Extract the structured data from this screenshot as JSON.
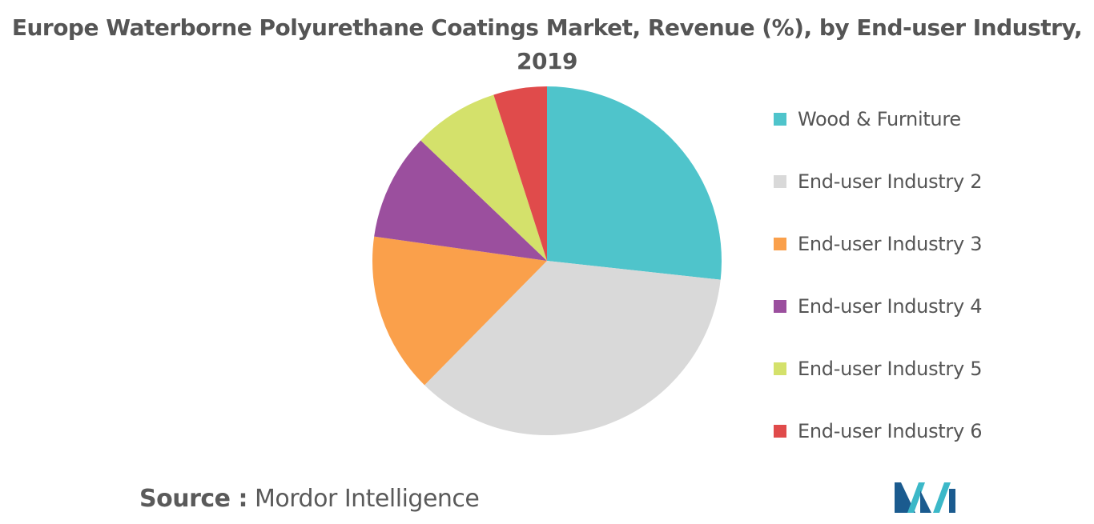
{
  "chart_data": {
    "type": "pie",
    "title_lines": [
      "Europe Waterborne Polyurethane Coatings Market, Revenue (%), by End-user Industry,",
      "2019"
    ],
    "categories": [
      "Wood & Furniture",
      "End-user Industry 2",
      "End-user Industry 3",
      "End-user Industry 4",
      "End-user Industry 5",
      "End-user Industry 6"
    ],
    "values": [
      27,
      36,
      15,
      10,
      8,
      5
    ],
    "colors": [
      "#4fc4cb",
      "#d9d9d9",
      "#faa04b",
      "#9b4f9e",
      "#d4e16b",
      "#e04b4b"
    ],
    "legend_position": "right"
  },
  "source": {
    "label": "Source :",
    "value": "Mordor Intelligence"
  },
  "logo": {
    "name": "mordor-intelligence-logo",
    "colors": [
      "#1b5b8f",
      "#3cb8c8"
    ]
  }
}
